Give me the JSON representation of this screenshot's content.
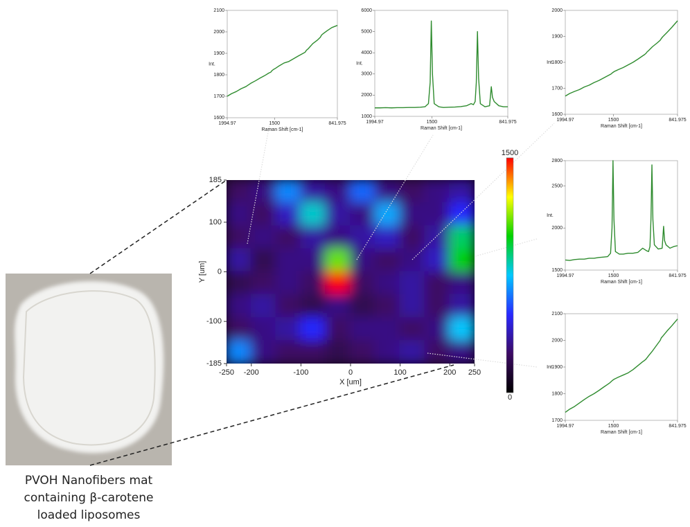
{
  "caption": [
    "PVOH Nanofibers mat",
    "containing β-carotene",
    "loaded liposomes"
  ],
  "chart_data": [
    {
      "type": "heatmap",
      "xlabel": "X [um]",
      "ylabel": "Y [um]",
      "x": [
        -225,
        -175,
        -125,
        -75,
        -25,
        25,
        75,
        125,
        175,
        225
      ],
      "y": [
        162,
        116,
        69,
        23,
        -23,
        -69,
        -116,
        -162
      ],
      "values": [
        [
          250,
          300,
          650,
          350,
          300,
          600,
          300,
          250,
          300,
          350
        ],
        [
          300,
          250,
          400,
          800,
          350,
          300,
          700,
          300,
          300,
          500
        ],
        [
          250,
          300,
          250,
          350,
          300,
          350,
          400,
          250,
          350,
          900
        ],
        [
          350,
          200,
          300,
          300,
          1100,
          300,
          250,
          300,
          400,
          1000
        ],
        [
          200,
          250,
          300,
          250,
          1500,
          250,
          300,
          350,
          250,
          300
        ],
        [
          300,
          350,
          250,
          200,
          300,
          200,
          250,
          350,
          250,
          350
        ],
        [
          250,
          300,
          350,
          500,
          250,
          300,
          300,
          250,
          300,
          750
        ],
        [
          650,
          300,
          250,
          250,
          200,
          250,
          300,
          350,
          250,
          300
        ]
      ],
      "xlim": [
        -250,
        250
      ],
      "xticks": [
        -250,
        -200,
        -100,
        0,
        100,
        200,
        250
      ],
      "ylim": [
        -185,
        185
      ],
      "yticks": [
        -185,
        -100,
        0,
        100,
        185
      ],
      "colormap": [
        "#000000",
        "#3c0a64",
        "#2828ff",
        "#00c8ff",
        "#00d200",
        "#ffff00",
        "#ff0000"
      ],
      "colorbar": {
        "clim": [
          0,
          1500
        ],
        "cticks": [
          0,
          1500
        ]
      }
    },
    {
      "type": "line",
      "xlabel": "Raman Shift [cm-1]",
      "ylabel": "Int.",
      "color": "#2e8b2e",
      "x": [
        1994.97,
        1950,
        1900,
        1850,
        1800,
        1750,
        1700,
        1650,
        1600,
        1560,
        1540,
        1525,
        1510,
        1490,
        1450,
        1400,
        1350,
        1300,
        1250,
        1200,
        1180,
        1165,
        1155,
        1140,
        1100,
        1050,
        1020,
        1008,
        995,
        950,
        900,
        841.975
      ],
      "values": [
        1700,
        1712,
        1722,
        1735,
        1745,
        1760,
        1772,
        1785,
        1797,
        1808,
        1812,
        1820,
        1825,
        1830,
        1842,
        1855,
        1862,
        1875,
        1888,
        1900,
        1905,
        1915,
        1918,
        1925,
        1945,
        1962,
        1975,
        1985,
        1990,
        2005,
        2020,
        2030
      ],
      "xlim": [
        1994.97,
        841.975
      ],
      "xticks": [
        1994.97,
        1500,
        841.975
      ],
      "ylim": [
        1600,
        2100
      ],
      "yticks": [
        1600,
        1700,
        1800,
        1900,
        2000,
        2100
      ]
    },
    {
      "type": "line",
      "xlabel": "Raman Shift [cm-1]",
      "ylabel": "Int.",
      "color": "#2e8b2e",
      "x": [
        1994.97,
        1950,
        1900,
        1850,
        1800,
        1750,
        1700,
        1650,
        1600,
        1560,
        1530,
        1515,
        1505,
        1495,
        1480,
        1440,
        1400,
        1350,
        1300,
        1250,
        1200,
        1160,
        1140,
        1125,
        1115,
        1105,
        1095,
        1080,
        1040,
        1000,
        985,
        975,
        960,
        920,
        880,
        841.975
      ],
      "values": [
        1400,
        1400,
        1410,
        1400,
        1410,
        1410,
        1420,
        1420,
        1430,
        1450,
        1600,
        2600,
        5500,
        3000,
        1600,
        1450,
        1420,
        1430,
        1440,
        1460,
        1500,
        1600,
        1550,
        1700,
        2600,
        5000,
        2800,
        1600,
        1450,
        1500,
        2400,
        1900,
        1700,
        1500,
        1450,
        1450
      ],
      "xlim": [
        1994.97,
        841.975
      ],
      "xticks": [
        1994.97,
        1500,
        841.975
      ],
      "ylim": [
        1000,
        6000
      ],
      "yticks": [
        1000,
        2000,
        3000,
        4000,
        5000,
        6000
      ]
    },
    {
      "type": "line",
      "xlabel": "Raman Shift [cm-1]",
      "ylabel": "Int.",
      "color": "#2e8b2e",
      "x": [
        1994.97,
        1950,
        1900,
        1850,
        1800,
        1750,
        1700,
        1650,
        1600,
        1560,
        1540,
        1525,
        1510,
        1490,
        1450,
        1400,
        1350,
        1300,
        1250,
        1200,
        1180,
        1165,
        1155,
        1140,
        1100,
        1050,
        1020,
        1008,
        995,
        950,
        900,
        841.975
      ],
      "values": [
        1670,
        1680,
        1688,
        1695,
        1705,
        1712,
        1722,
        1730,
        1740,
        1748,
        1752,
        1755,
        1760,
        1765,
        1772,
        1780,
        1790,
        1800,
        1812,
        1825,
        1830,
        1835,
        1840,
        1845,
        1860,
        1875,
        1885,
        1892,
        1898,
        1915,
        1935,
        1960
      ],
      "xlim": [
        1994.97,
        841.975
      ],
      "xticks": [
        1994.97,
        1500,
        841.975
      ],
      "ylim": [
        1600,
        2000
      ],
      "yticks": [
        1600,
        1700,
        1800,
        1900,
        2000
      ]
    },
    {
      "type": "line",
      "xlabel": "Raman Shift [cm-1]",
      "ylabel": "Int.",
      "color": "#2e8b2e",
      "x": [
        1994.97,
        1950,
        1900,
        1850,
        1800,
        1750,
        1700,
        1650,
        1600,
        1560,
        1530,
        1515,
        1505,
        1495,
        1480,
        1440,
        1400,
        1350,
        1300,
        1250,
        1200,
        1160,
        1140,
        1125,
        1115,
        1105,
        1095,
        1080,
        1040,
        1000,
        985,
        975,
        960,
        920,
        880,
        841.975
      ],
      "values": [
        1620,
        1615,
        1625,
        1630,
        1630,
        1640,
        1640,
        1650,
        1655,
        1660,
        1700,
        2000,
        2800,
        2100,
        1720,
        1690,
        1690,
        1700,
        1700,
        1710,
        1760,
        1730,
        1720,
        1780,
        2100,
        2750,
        2100,
        1800,
        1750,
        1760,
        2020,
        1850,
        1800,
        1760,
        1780,
        1790
      ],
      "xlim": [
        1994.97,
        841.975
      ],
      "xticks": [
        1994.97,
        1500,
        841.975
      ],
      "ylim": [
        1500,
        2800
      ],
      "yticks": [
        1500,
        2000,
        2500,
        2800
      ]
    },
    {
      "type": "line",
      "xlabel": "Raman Shift [cm-1]",
      "ylabel": "Int.",
      "color": "#2e8b2e",
      "x": [
        1994.97,
        1950,
        1900,
        1850,
        1800,
        1750,
        1700,
        1650,
        1600,
        1560,
        1540,
        1525,
        1510,
        1490,
        1450,
        1400,
        1350,
        1300,
        1250,
        1200,
        1180,
        1165,
        1155,
        1140,
        1100,
        1050,
        1020,
        1008,
        995,
        950,
        900,
        841.975
      ],
      "values": [
        1730,
        1742,
        1752,
        1765,
        1778,
        1790,
        1800,
        1812,
        1825,
        1835,
        1840,
        1845,
        1850,
        1855,
        1862,
        1870,
        1878,
        1890,
        1905,
        1920,
        1925,
        1930,
        1935,
        1942,
        1960,
        1985,
        2000,
        2010,
        2015,
        2035,
        2055,
        2080
      ],
      "xlim": [
        1994.97,
        841.975
      ],
      "xticks": [
        1994.97,
        1500,
        841.975
      ],
      "ylim": [
        1700,
        2100
      ],
      "yticks": [
        1700,
        1800,
        1900,
        2000,
        2100
      ]
    }
  ]
}
